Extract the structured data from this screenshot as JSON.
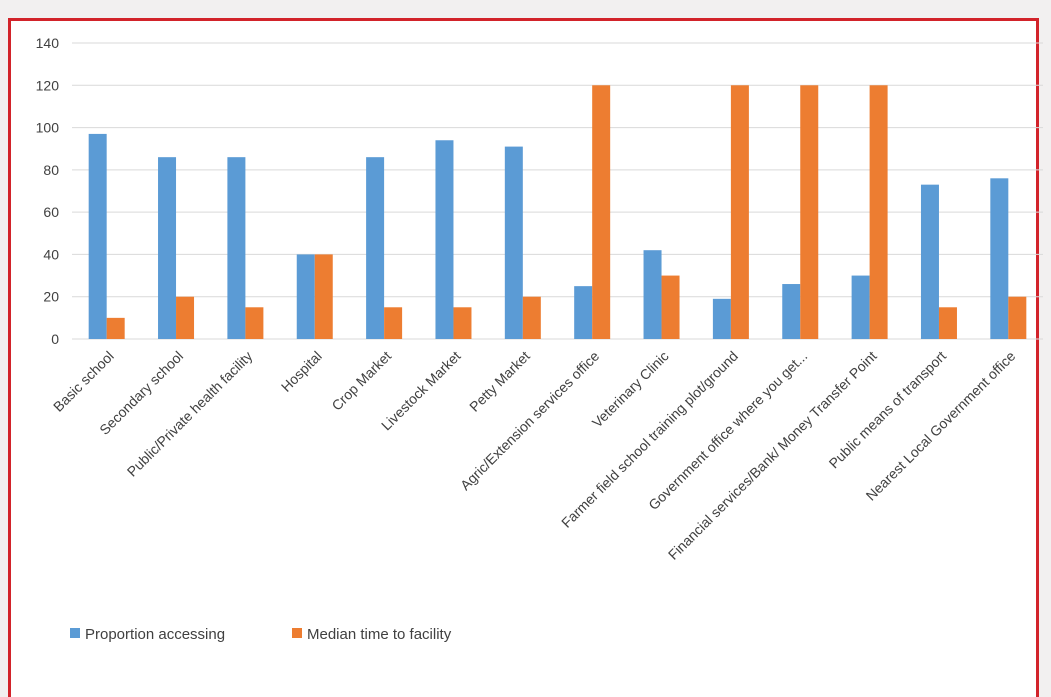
{
  "chart_data": {
    "type": "bar",
    "title": "",
    "xlabel": "",
    "ylabel": "",
    "ylim": [
      0,
      140
    ],
    "yticks": [
      0,
      20,
      40,
      60,
      80,
      100,
      120,
      140
    ],
    "grid": true,
    "legend_position": "bottom-left",
    "categories": [
      "Basic school",
      "Secondary school",
      "Public/Private health facility",
      "Hospital",
      "Crop Market",
      "Livestock Market",
      "Petty Market",
      "Agric/Extension services office",
      "Veterinary Clinic",
      "Farmer field school training plot/ground",
      "Government office where you get...",
      "Financial services/Bank/ Money Transfer Point",
      "Public means of transport",
      "Nearest Local Government office"
    ],
    "series": [
      {
        "name": "Proportion accessing",
        "color": "#5b9bd5",
        "values": [
          97,
          86,
          86,
          40,
          86,
          94,
          91,
          25,
          42,
          19,
          26,
          30,
          73,
          76
        ]
      },
      {
        "name": "Median time to facility",
        "color": "#ed7d31",
        "values": [
          10,
          20,
          15,
          40,
          15,
          15,
          20,
          120,
          30,
          120,
          120,
          120,
          15,
          20
        ]
      }
    ]
  },
  "colors": {
    "frame_border": "#d2232a",
    "gridline": "#d9d9d9",
    "axis_text": "#404040"
  }
}
